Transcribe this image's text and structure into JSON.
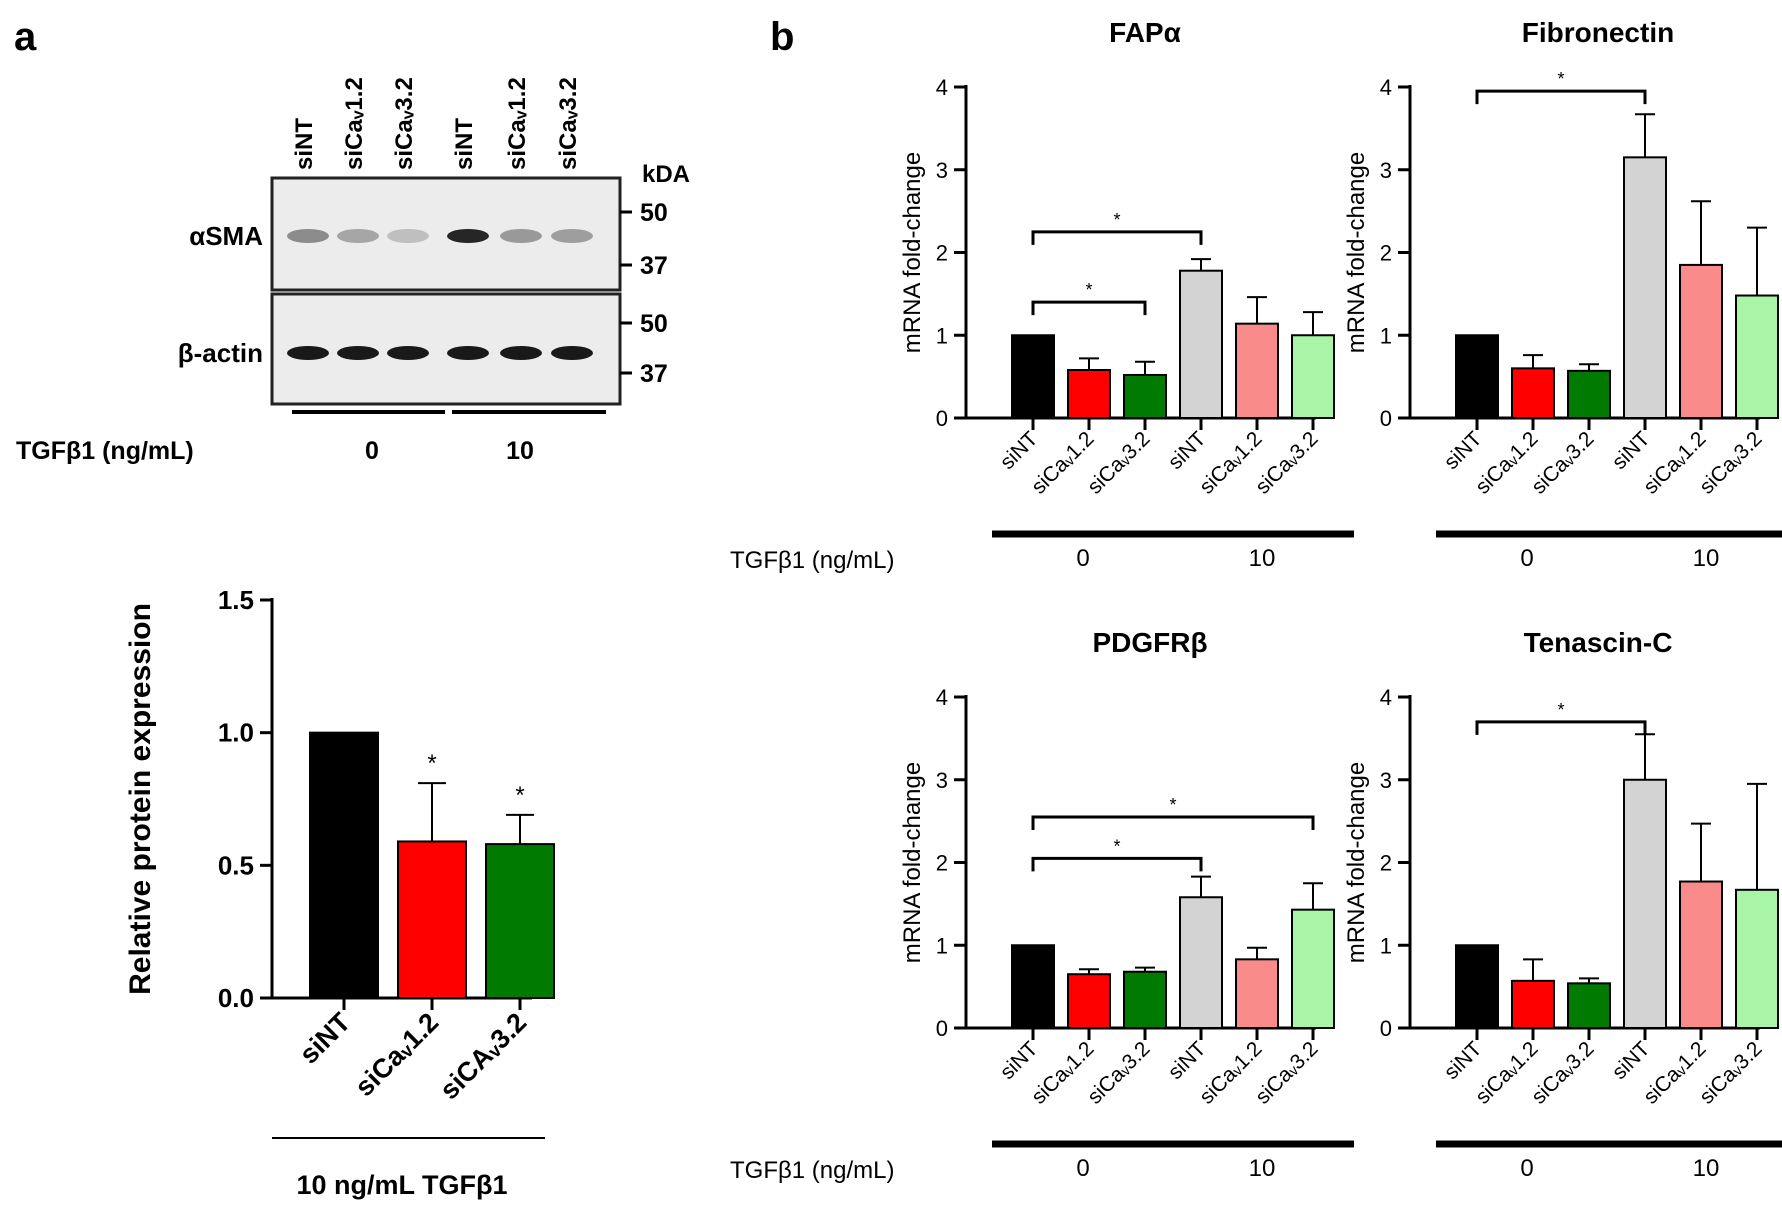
{
  "panels": {
    "a_label": "a",
    "b_label": "b"
  },
  "blot": {
    "lanes": [
      "siNT",
      "siCaᵥ1.2",
      "siCaᵥ3.2",
      "siNT",
      "siCaᵥ1.2",
      "siCaᵥ3.2"
    ],
    "kda_label": "kDA",
    "rows": [
      {
        "label": "αSMA",
        "markers": [
          "50",
          "37"
        ],
        "intensity": [
          0.45,
          0.35,
          0.25,
          0.85,
          0.4,
          0.38
        ]
      },
      {
        "label": "β-actin",
        "markers": [
          "50",
          "37"
        ],
        "intensity": [
          0.9,
          0.9,
          0.9,
          0.9,
          0.9,
          0.9
        ]
      }
    ],
    "treatment_label": "TGFβ1 (ng/mL)",
    "groups": [
      "0",
      "10"
    ]
  },
  "colors": {
    "black": "#000000",
    "red": "#ff0000",
    "green": "#007a00",
    "gray": "#d3d3d3",
    "lightred": "#f98b8b",
    "lightgreen": "#a8f5a8"
  },
  "chart_data": [
    {
      "id": "protein",
      "type": "bar",
      "title": "",
      "ylabel": "Relative protein expression",
      "ylim": [
        0,
        1.5
      ],
      "yticks": [
        "0.0",
        "0.5",
        "1.0",
        "1.5"
      ],
      "categories": [
        "siNT",
        "siCaᵥ1.2",
        "siCAᵥ3.2"
      ],
      "values": [
        1.0,
        0.59,
        0.58
      ],
      "errors": [
        0,
        0.22,
        0.11
      ],
      "significance": [
        "",
        "*",
        "*"
      ],
      "treatment_label": "10 ng/mL  TGFβ1"
    },
    {
      "id": "fap",
      "type": "bar",
      "title": "FAPα",
      "ylabel": "mRNA fold-change",
      "ylim": [
        0,
        4
      ],
      "yticks": [
        "0",
        "1",
        "2",
        "3",
        "4"
      ],
      "categories": [
        "siNT",
        "siCaᵥ1.2",
        "siCaᵥ3.2",
        "siNT",
        "siCaᵥ1.2",
        "siCaᵥ3.2"
      ],
      "values": [
        1.0,
        0.58,
        0.52,
        1.78,
        1.14,
        1.0
      ],
      "errors": [
        0,
        0.14,
        0.16,
        0.14,
        0.32,
        0.28
      ],
      "brackets": [
        {
          "from": 0,
          "to": 3,
          "y": 2.25,
          "label": "*"
        },
        {
          "from": 0,
          "to": 2,
          "y": 1.4,
          "label": "*"
        }
      ],
      "treatment_label": "TGFβ1 (ng/mL)",
      "groups": [
        "0",
        "10"
      ]
    },
    {
      "id": "fibronectin",
      "type": "bar",
      "title": "Fibronectin",
      "ylabel": "mRNA fold-change",
      "ylim": [
        0,
        4
      ],
      "yticks": [
        "0",
        "1",
        "2",
        "3",
        "4"
      ],
      "categories": [
        "siNT",
        "siCaᵥ1.2",
        "siCaᵥ3.2",
        "siNT",
        "siCaᵥ1.2",
        "siCaᵥ3.2"
      ],
      "values": [
        1.0,
        0.6,
        0.57,
        3.15,
        1.85,
        1.48
      ],
      "errors": [
        0,
        0.16,
        0.08,
        0.52,
        0.77,
        0.82
      ],
      "brackets": [
        {
          "from": 0,
          "to": 3,
          "y": 3.95,
          "label": "*"
        }
      ],
      "treatment_label": "",
      "groups": [
        "0",
        "10"
      ]
    },
    {
      "id": "pdgfr",
      "type": "bar",
      "title": "PDGFRβ",
      "ylabel": "mRNA fold-change",
      "ylim": [
        0,
        4
      ],
      "yticks": [
        "0",
        "1",
        "2",
        "3",
        "4"
      ],
      "categories": [
        "siNT",
        "siCaᵥ1.2",
        "siCaᵥ3.2",
        "siNT",
        "siCaᵥ1.2",
        "siCaᵥ3.2"
      ],
      "values": [
        1.0,
        0.65,
        0.68,
        1.58,
        0.83,
        1.43
      ],
      "errors": [
        0,
        0.06,
        0.05,
        0.25,
        0.14,
        0.32
      ],
      "brackets": [
        {
          "from": 0,
          "to": 5,
          "y": 2.55,
          "label": "*"
        },
        {
          "from": 0,
          "to": 3,
          "y": 2.05,
          "label": "*"
        }
      ],
      "treatment_label": "TGFβ1 (ng/mL)",
      "groups": [
        "0",
        "10"
      ]
    },
    {
      "id": "tenascin",
      "type": "bar",
      "title": "Tenascin-C",
      "ylabel": "mRNA fold-change",
      "ylim": [
        0,
        4
      ],
      "yticks": [
        "0",
        "1",
        "2",
        "3",
        "4"
      ],
      "categories": [
        "siNT",
        "siCaᵥ1.2",
        "siCaᵥ3.2",
        "siNT",
        "siCaᵥ1.2",
        "siCaᵥ3.2"
      ],
      "values": [
        1.0,
        0.57,
        0.54,
        3.0,
        1.77,
        1.67
      ],
      "errors": [
        0,
        0.26,
        0.06,
        0.55,
        0.7,
        1.28
      ],
      "brackets": [
        {
          "from": 0,
          "to": 3,
          "y": 3.7,
          "label": "*"
        }
      ],
      "treatment_label": "",
      "groups": [
        "0",
        "10"
      ]
    }
  ]
}
